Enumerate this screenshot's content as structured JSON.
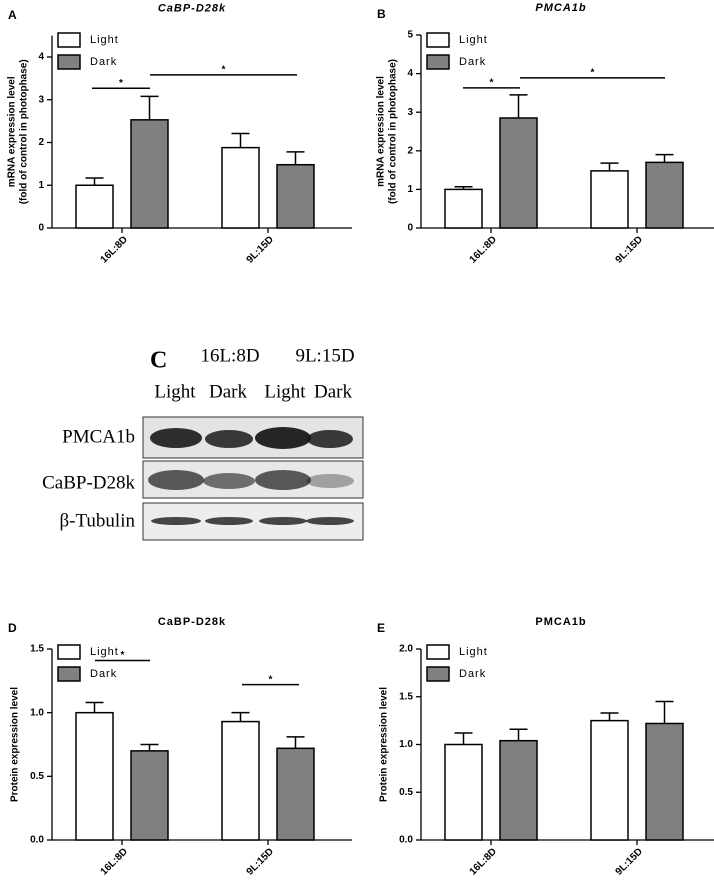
{
  "chart_data": [
    {
      "type": "bar",
      "panel": "A",
      "title": "CaBP-D28k",
      "ylabel": [
        "mRNA expression level",
        "(fold of control in photophase)"
      ],
      "categories": [
        "16L:8D",
        "9L:15D"
      ],
      "series": [
        {
          "name": "Light",
          "color": "#ffffff",
          "values": [
            1.0,
            1.88
          ],
          "errors": [
            0.17,
            0.33
          ]
        },
        {
          "name": "Dark",
          "color": "#808080",
          "values": [
            2.53,
            1.48
          ],
          "errors": [
            0.55,
            0.3
          ]
        }
      ],
      "ylim": [
        0,
        4.5
      ],
      "yticks": [
        0,
        1,
        2,
        3,
        4
      ],
      "legend": "upper left",
      "annotations": [
        {
          "text": "*",
          "y": 3.27
        },
        {
          "text": "*",
          "y": 3.58
        }
      ]
    },
    {
      "type": "bar",
      "panel": "B",
      "title": "PMCA1b",
      "ylabel": [
        "mRNA expression level",
        "(fold of control in photophase)"
      ],
      "categories": [
        "16L:8D",
        "9L:15D"
      ],
      "series": [
        {
          "name": "Light",
          "color": "#ffffff",
          "values": [
            1.0,
            1.48
          ],
          "errors": [
            0.07,
            0.2
          ]
        },
        {
          "name": "Dark",
          "color": "#808080",
          "values": [
            2.85,
            1.7
          ],
          "errors": [
            0.6,
            0.2
          ]
        }
      ],
      "ylim": [
        0,
        5
      ],
      "yticks": [
        0,
        1,
        2,
        3,
        4,
        5
      ],
      "legend": "upper left",
      "annotations": [
        {
          "text": "*",
          "y": 3.63
        },
        {
          "text": "*",
          "y": 3.89
        }
      ]
    },
    {
      "type": "bar",
      "panel": "D",
      "title": "CaBP-D28k",
      "ylabel": [
        "Protein expression level"
      ],
      "categories": [
        "16L:8D",
        "9L:15D"
      ],
      "series": [
        {
          "name": "Light",
          "color": "#ffffff",
          "values": [
            1.0,
            0.93
          ],
          "errors": [
            0.08,
            0.07
          ]
        },
        {
          "name": "Dark",
          "color": "#808080",
          "values": [
            0.7,
            0.72
          ],
          "errors": [
            0.05,
            0.09
          ]
        }
      ],
      "ylim": [
        0,
        1.5
      ],
      "yticks": [
        {
          "value": 0,
          "label": "0.0"
        },
        {
          "value": 0.5,
          "label": "0.5"
        },
        {
          "value": 1,
          "label": "1.0"
        },
        {
          "value": 1.5,
          "label": "1.5"
        }
      ],
      "legend": "upper left",
      "annotations": [
        {
          "text": "*",
          "y": 1.41
        },
        {
          "text": "*",
          "y": 1.22
        }
      ]
    },
    {
      "type": "bar",
      "panel": "E",
      "title": "PMCA1b",
      "ylabel": [
        "Protein expression level"
      ],
      "categories": [
        "16L:8D",
        "9L:15D"
      ],
      "series": [
        {
          "name": "Light",
          "color": "#ffffff",
          "values": [
            1.0,
            1.25
          ],
          "errors": [
            0.12,
            0.08
          ]
        },
        {
          "name": "Dark",
          "color": "#808080",
          "values": [
            1.04,
            1.22
          ],
          "errors": [
            0.12,
            0.23
          ]
        }
      ],
      "ylim": [
        0,
        2
      ],
      "yticks": [
        {
          "value": 0,
          "label": "0.0"
        },
        {
          "value": 0.5,
          "label": "0.5"
        },
        {
          "value": 1,
          "label": "1.0"
        },
        {
          "value": 1.5,
          "label": "1.5"
        },
        {
          "value": 2,
          "label": "2.0"
        }
      ],
      "legend": "upper left"
    }
  ],
  "blot": {
    "panel": "C",
    "groups": [
      "16L:8D",
      "9L:15D"
    ],
    "lanes": [
      "Light",
      "Dark",
      "Light",
      "Dark"
    ],
    "rows": [
      "PMCA1b",
      "CaBP-D28k",
      "β-Tubulin"
    ]
  }
}
